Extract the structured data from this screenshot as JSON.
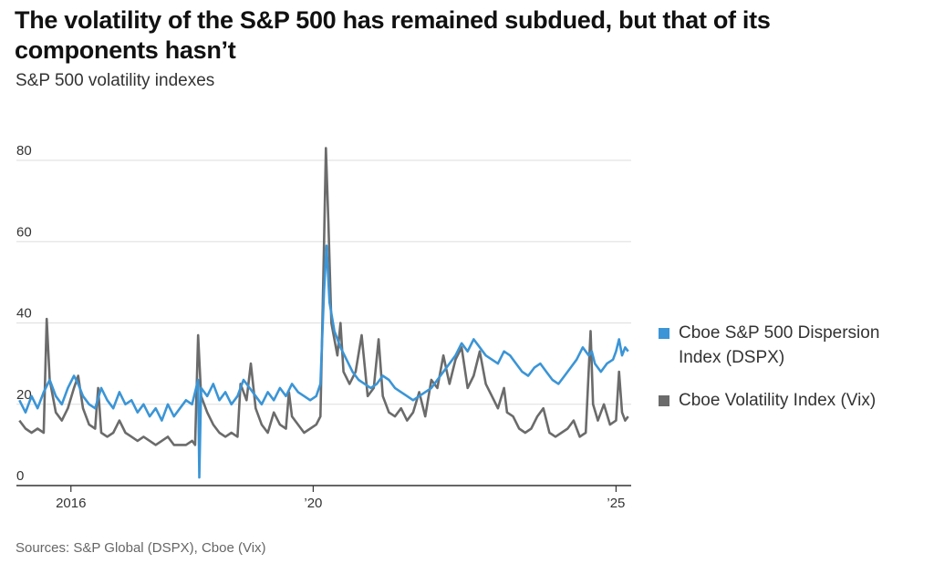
{
  "title": "The volatility of the S&P 500 has remained subdued, but that of its components hasn’t",
  "subtitle": "S&P 500 volatility indexes",
  "source": "Sources: S&P Global (DSPX), Cboe (Vix)",
  "colors": {
    "dspx": "#3b95d6",
    "vix": "#6b6b6b",
    "grid": "#dddddd",
    "axis": "#333333"
  },
  "chart_data": {
    "type": "line",
    "title": "The volatility of the S&P 500 has remained subdued, but that of its components hasn’t",
    "subtitle": "S&P 500 volatility indexes",
    "xlabel": "",
    "ylabel": "",
    "xlim": [
      2015.1,
      2025.25
    ],
    "ylim": [
      0,
      80
    ],
    "y_ticks": [
      0,
      20,
      40,
      60,
      80
    ],
    "x_ticks": [
      {
        "value": 2016,
        "label": "2016"
      },
      {
        "value": 2020,
        "label": "’20"
      },
      {
        "value": 2025,
        "label": "’25"
      }
    ],
    "grid": true,
    "legend_position": "right",
    "series": [
      {
        "name": "Cboe S&P 500 Dispersion Index (DSPX)",
        "color": "#3b95d6",
        "points": [
          [
            2015.15,
            21
          ],
          [
            2015.25,
            18
          ],
          [
            2015.35,
            22
          ],
          [
            2015.45,
            19
          ],
          [
            2015.55,
            23
          ],
          [
            2015.65,
            26
          ],
          [
            2015.75,
            22
          ],
          [
            2015.85,
            20
          ],
          [
            2015.95,
            24
          ],
          [
            2016.05,
            27
          ],
          [
            2016.12,
            25
          ],
          [
            2016.2,
            22
          ],
          [
            2016.3,
            20
          ],
          [
            2016.4,
            19
          ],
          [
            2016.5,
            24
          ],
          [
            2016.6,
            21
          ],
          [
            2016.7,
            19
          ],
          [
            2016.8,
            23
          ],
          [
            2016.9,
            20
          ],
          [
            2017.0,
            21
          ],
          [
            2017.1,
            18
          ],
          [
            2017.2,
            20
          ],
          [
            2017.3,
            17
          ],
          [
            2017.4,
            19
          ],
          [
            2017.5,
            16
          ],
          [
            2017.6,
            20
          ],
          [
            2017.7,
            17
          ],
          [
            2017.8,
            19
          ],
          [
            2017.9,
            21
          ],
          [
            2018.0,
            20
          ],
          [
            2018.05,
            23
          ],
          [
            2018.1,
            26
          ],
          [
            2018.12,
            2
          ],
          [
            2018.15,
            24
          ],
          [
            2018.25,
            22
          ],
          [
            2018.35,
            25
          ],
          [
            2018.45,
            21
          ],
          [
            2018.55,
            23
          ],
          [
            2018.65,
            20
          ],
          [
            2018.75,
            22
          ],
          [
            2018.85,
            26
          ],
          [
            2018.95,
            24
          ],
          [
            2019.05,
            22
          ],
          [
            2019.15,
            20
          ],
          [
            2019.25,
            23
          ],
          [
            2019.35,
            21
          ],
          [
            2019.45,
            24
          ],
          [
            2019.55,
            22
          ],
          [
            2019.65,
            25
          ],
          [
            2019.75,
            23
          ],
          [
            2019.85,
            22
          ],
          [
            2019.95,
            21
          ],
          [
            2020.05,
            22
          ],
          [
            2020.12,
            25
          ],
          [
            2020.18,
            48
          ],
          [
            2020.22,
            59
          ],
          [
            2020.27,
            45
          ],
          [
            2020.35,
            38
          ],
          [
            2020.45,
            34
          ],
          [
            2020.55,
            31
          ],
          [
            2020.65,
            28
          ],
          [
            2020.75,
            26
          ],
          [
            2020.85,
            25
          ],
          [
            2020.95,
            24
          ],
          [
            2021.05,
            25
          ],
          [
            2021.15,
            27
          ],
          [
            2021.25,
            26
          ],
          [
            2021.35,
            24
          ],
          [
            2021.45,
            23
          ],
          [
            2021.55,
            22
          ],
          [
            2021.65,
            21
          ],
          [
            2021.75,
            22
          ],
          [
            2021.85,
            23
          ],
          [
            2021.95,
            24
          ],
          [
            2022.05,
            26
          ],
          [
            2022.15,
            28
          ],
          [
            2022.25,
            30
          ],
          [
            2022.35,
            32
          ],
          [
            2022.45,
            35
          ],
          [
            2022.55,
            33
          ],
          [
            2022.65,
            36
          ],
          [
            2022.75,
            34
          ],
          [
            2022.85,
            32
          ],
          [
            2022.95,
            31
          ],
          [
            2023.05,
            30
          ],
          [
            2023.15,
            33
          ],
          [
            2023.25,
            32
          ],
          [
            2023.35,
            30
          ],
          [
            2023.45,
            28
          ],
          [
            2023.55,
            27
          ],
          [
            2023.65,
            29
          ],
          [
            2023.75,
            30
          ],
          [
            2023.85,
            28
          ],
          [
            2023.95,
            26
          ],
          [
            2024.05,
            25
          ],
          [
            2024.15,
            27
          ],
          [
            2024.25,
            29
          ],
          [
            2024.35,
            31
          ],
          [
            2024.45,
            34
          ],
          [
            2024.55,
            32
          ],
          [
            2024.6,
            33
          ],
          [
            2024.65,
            30
          ],
          [
            2024.75,
            28
          ],
          [
            2024.85,
            30
          ],
          [
            2024.95,
            31
          ],
          [
            2025.0,
            33
          ],
          [
            2025.05,
            36
          ],
          [
            2025.1,
            32
          ],
          [
            2025.15,
            34
          ],
          [
            2025.2,
            33
          ]
        ]
      },
      {
        "name": "Cboe Volatility Index (Vix)",
        "color": "#6b6b6b",
        "points": [
          [
            2015.15,
            16
          ],
          [
            2015.25,
            14
          ],
          [
            2015.35,
            13
          ],
          [
            2015.45,
            14
          ],
          [
            2015.55,
            13
          ],
          [
            2015.6,
            41
          ],
          [
            2015.65,
            26
          ],
          [
            2015.75,
            18
          ],
          [
            2015.85,
            16
          ],
          [
            2015.95,
            19
          ],
          [
            2016.05,
            24
          ],
          [
            2016.12,
            27
          ],
          [
            2016.2,
            19
          ],
          [
            2016.3,
            15
          ],
          [
            2016.4,
            14
          ],
          [
            2016.45,
            24
          ],
          [
            2016.5,
            13
          ],
          [
            2016.6,
            12
          ],
          [
            2016.7,
            13
          ],
          [
            2016.8,
            16
          ],
          [
            2016.9,
            13
          ],
          [
            2017.0,
            12
          ],
          [
            2017.1,
            11
          ],
          [
            2017.2,
            12
          ],
          [
            2017.3,
            11
          ],
          [
            2017.4,
            10
          ],
          [
            2017.5,
            11
          ],
          [
            2017.6,
            12
          ],
          [
            2017.7,
            10
          ],
          [
            2017.8,
            10
          ],
          [
            2017.9,
            10
          ],
          [
            2018.0,
            11
          ],
          [
            2018.05,
            10
          ],
          [
            2018.1,
            37
          ],
          [
            2018.15,
            22
          ],
          [
            2018.25,
            18
          ],
          [
            2018.35,
            15
          ],
          [
            2018.45,
            13
          ],
          [
            2018.55,
            12
          ],
          [
            2018.65,
            13
          ],
          [
            2018.75,
            12
          ],
          [
            2018.8,
            25
          ],
          [
            2018.9,
            21
          ],
          [
            2018.97,
            30
          ],
          [
            2019.05,
            19
          ],
          [
            2019.15,
            15
          ],
          [
            2019.25,
            13
          ],
          [
            2019.35,
            18
          ],
          [
            2019.45,
            15
          ],
          [
            2019.55,
            14
          ],
          [
            2019.6,
            23
          ],
          [
            2019.65,
            17
          ],
          [
            2019.75,
            15
          ],
          [
            2019.85,
            13
          ],
          [
            2019.95,
            14
          ],
          [
            2020.05,
            15
          ],
          [
            2020.12,
            17
          ],
          [
            2020.18,
            60
          ],
          [
            2020.21,
            83
          ],
          [
            2020.25,
            65
          ],
          [
            2020.3,
            40
          ],
          [
            2020.4,
            32
          ],
          [
            2020.45,
            40
          ],
          [
            2020.5,
            28
          ],
          [
            2020.6,
            25
          ],
          [
            2020.7,
            28
          ],
          [
            2020.8,
            37
          ],
          [
            2020.9,
            22
          ],
          [
            2021.0,
            24
          ],
          [
            2021.08,
            36
          ],
          [
            2021.15,
            22
          ],
          [
            2021.25,
            18
          ],
          [
            2021.35,
            17
          ],
          [
            2021.45,
            19
          ],
          [
            2021.55,
            16
          ],
          [
            2021.65,
            18
          ],
          [
            2021.75,
            23
          ],
          [
            2021.85,
            17
          ],
          [
            2021.95,
            26
          ],
          [
            2022.05,
            24
          ],
          [
            2022.15,
            32
          ],
          [
            2022.25,
            25
          ],
          [
            2022.35,
            31
          ],
          [
            2022.45,
            34
          ],
          [
            2022.55,
            24
          ],
          [
            2022.65,
            27
          ],
          [
            2022.75,
            33
          ],
          [
            2022.85,
            25
          ],
          [
            2022.95,
            22
          ],
          [
            2023.05,
            19
          ],
          [
            2023.15,
            24
          ],
          [
            2023.2,
            18
          ],
          [
            2023.3,
            17
          ],
          [
            2023.4,
            14
          ],
          [
            2023.5,
            13
          ],
          [
            2023.6,
            14
          ],
          [
            2023.7,
            17
          ],
          [
            2023.8,
            19
          ],
          [
            2023.9,
            13
          ],
          [
            2024.0,
            12
          ],
          [
            2024.1,
            13
          ],
          [
            2024.2,
            14
          ],
          [
            2024.3,
            16
          ],
          [
            2024.4,
            12
          ],
          [
            2024.5,
            13
          ],
          [
            2024.58,
            38
          ],
          [
            2024.62,
            20
          ],
          [
            2024.7,
            16
          ],
          [
            2024.8,
            20
          ],
          [
            2024.9,
            15
          ],
          [
            2025.0,
            16
          ],
          [
            2025.05,
            28
          ],
          [
            2025.1,
            18
          ],
          [
            2025.15,
            16
          ],
          [
            2025.2,
            17
          ]
        ]
      }
    ]
  }
}
